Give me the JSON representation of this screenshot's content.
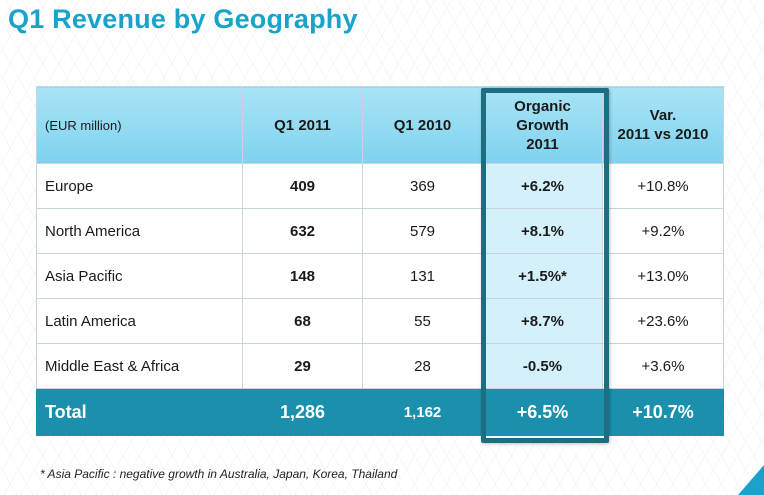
{
  "title": "Q1 Revenue by Geography",
  "table": {
    "headers": [
      "(EUR million)",
      "Q1 2011",
      "Q1 2010",
      "Organic\nGrowth\n2011",
      "Var.\n2011 vs 2010"
    ],
    "rows": [
      {
        "region": "Europe",
        "q1_2011": "409",
        "q1_2010": "369",
        "organic": "+6.2%",
        "var": "+10.8%"
      },
      {
        "region": "North America",
        "q1_2011": "632",
        "q1_2010": "579",
        "organic": "+8.1%",
        "var": "+9.2%"
      },
      {
        "region": "Asia Pacific",
        "q1_2011": "148",
        "q1_2010": "131",
        "organic": "+1.5%*",
        "var": "+13.0%"
      },
      {
        "region": "Latin America",
        "q1_2011": "68",
        "q1_2010": "55",
        "organic": "+8.7%",
        "var": "+23.6%"
      },
      {
        "region": "Middle East & Africa",
        "q1_2011": "29",
        "q1_2010": "28",
        "organic": "-0.5%",
        "var": "+3.6%"
      }
    ],
    "total": {
      "region": "Total",
      "q1_2011": "1,286",
      "q1_2010": "1,162",
      "organic": "+6.5%",
      "var": "+10.7%"
    }
  },
  "footnote": "* Asia Pacific : negative growth in Australia, Japan, Korea, Thailand",
  "colors": {
    "title": "#1aa3c9",
    "header_bg": "#8fd9f2",
    "total_bg": "#1a90ad",
    "highlight_frame": "#1d6e80",
    "highlight_cell": "#d4f1fb"
  }
}
